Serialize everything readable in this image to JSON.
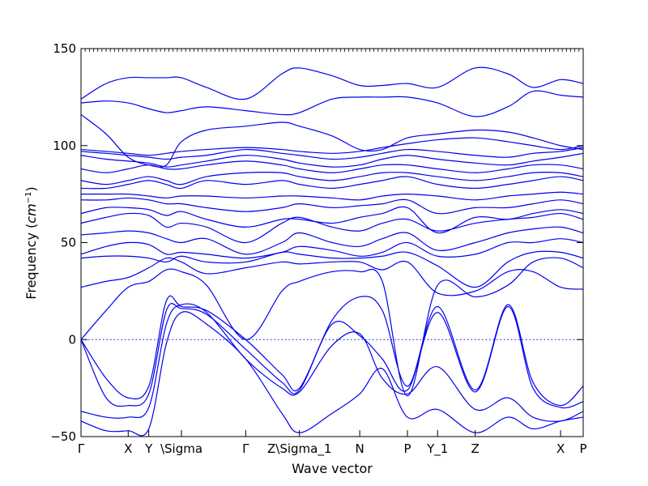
{
  "chart_data": {
    "type": "line",
    "title": "",
    "xlabel": "Wave vector",
    "ylabel": "Frequency",
    "ylabel_unit_base": "cm",
    "ylabel_unit_exp": "−1",
    "ylim": [
      -50,
      150
    ],
    "yticks": [
      -50,
      0,
      50,
      100,
      150
    ],
    "xlim": [
      0,
      1
    ],
    "grid": false,
    "zero_line": true,
    "line_color": "#0000ee",
    "xticks": [
      {
        "label": "Γ",
        "x": 0.0
      },
      {
        "label": "X",
        "x": 0.094
      },
      {
        "label": "Y",
        "x": 0.135
      },
      {
        "label": "\\Sigma",
        "x": 0.2
      },
      {
        "label": "Γ",
        "x": 0.328
      },
      {
        "label": "Z\\Sigma_1",
        "x": 0.435
      },
      {
        "label": "N",
        "x": 0.555
      },
      {
        "label": "P",
        "x": 0.65
      },
      {
        "label": "Y_1",
        "x": 0.71
      },
      {
        "label": "Z",
        "x": 0.785
      },
      {
        "label": "X",
        "x": 0.955
      },
      {
        "label": "P",
        "x": 1.0
      }
    ],
    "series": [
      {
        "x": [
          0,
          0.05,
          0.094,
          0.135,
          0.17,
          0.2,
          0.25,
          0.328,
          0.4,
          0.435,
          0.5,
          0.555,
          0.6,
          0.65,
          0.71,
          0.785,
          0.85,
          0.9,
          0.955,
          1.0
        ],
        "y": [
          -42,
          -47,
          -47,
          -46,
          -2,
          14,
          8,
          -10,
          -38,
          -48,
          -38,
          -28,
          -15,
          -40,
          -36,
          -48,
          -40,
          -46,
          -42,
          -40
        ]
      },
      {
        "x": [
          0,
          0.05,
          0.094,
          0.135,
          0.17,
          0.2,
          0.25,
          0.328,
          0.4,
          0.435,
          0.5,
          0.555,
          0.6,
          0.65,
          0.71,
          0.785,
          0.85,
          0.9,
          0.955,
          1.0
        ],
        "y": [
          -37,
          -40,
          -40,
          -35,
          8,
          18,
          14,
          -10,
          -25,
          -27,
          -3,
          3,
          -20,
          -28,
          -14,
          -36,
          -30,
          -40,
          -42,
          -37
        ]
      },
      {
        "x": [
          0,
          0.05,
          0.094,
          0.135,
          0.17,
          0.2,
          0.25,
          0.328,
          0.4,
          0.435,
          0.5,
          0.555,
          0.6,
          0.65,
          0.71,
          0.785,
          0.85,
          0.9,
          0.955,
          1.0
        ],
        "y": [
          0,
          -30,
          -34,
          -28,
          15,
          16,
          13,
          -5,
          -22,
          -26,
          8,
          2,
          -10,
          -26,
          14,
          -27,
          17,
          -25,
          -35,
          -32
        ]
      },
      {
        "x": [
          0,
          0.05,
          0.094,
          0.135,
          0.17,
          0.2,
          0.25,
          0.328,
          0.4,
          0.435,
          0.5,
          0.555,
          0.6,
          0.65,
          0.71,
          0.785,
          0.85,
          0.9,
          0.955,
          1.0
        ],
        "y": [
          0,
          -20,
          -30,
          -24,
          20,
          17,
          15,
          0,
          -18,
          -25,
          10,
          22,
          15,
          -24,
          17,
          -26,
          18,
          -22,
          -34,
          -24
        ]
      },
      {
        "x": [
          0,
          0.05,
          0.094,
          0.135,
          0.17,
          0.2,
          0.25,
          0.328,
          0.4,
          0.435,
          0.5,
          0.555,
          0.6,
          0.65,
          0.71,
          0.785,
          0.85,
          0.9,
          0.955,
          1.0
        ],
        "y": [
          0,
          15,
          27,
          30,
          36,
          35,
          28,
          0,
          25,
          30,
          35,
          35,
          30,
          -29,
          28,
          22,
          28,
          40,
          42,
          37
        ]
      },
      {
        "x": [
          0,
          0.05,
          0.094,
          0.135,
          0.17,
          0.2,
          0.25,
          0.328,
          0.4,
          0.435,
          0.5,
          0.555,
          0.6,
          0.65,
          0.71,
          0.785,
          0.85,
          0.9,
          0.955,
          1.0
        ],
        "y": [
          27,
          30,
          32,
          37,
          42,
          40,
          34,
          37,
          40,
          39,
          40,
          40,
          36,
          40,
          24,
          25,
          35,
          35,
          27,
          26
        ]
      },
      {
        "x": [
          0,
          0.05,
          0.094,
          0.135,
          0.17,
          0.2,
          0.25,
          0.328,
          0.4,
          0.435,
          0.5,
          0.555,
          0.6,
          0.65,
          0.71,
          0.785,
          0.85,
          0.9,
          0.955,
          1.0
        ],
        "y": [
          42,
          43,
          43,
          42,
          40,
          43,
          40,
          40,
          45,
          44,
          42,
          42,
          43,
          45,
          38,
          27,
          40,
          45,
          45,
          42
        ]
      },
      {
        "x": [
          0,
          0.05,
          0.094,
          0.135,
          0.17,
          0.2,
          0.25,
          0.328,
          0.4,
          0.435,
          0.5,
          0.555,
          0.6,
          0.65,
          0.71,
          0.785,
          0.85,
          0.9,
          0.955,
          1.0
        ],
        "y": [
          44,
          48,
          50,
          49,
          44,
          45,
          44,
          42,
          45,
          48,
          46,
          43,
          45,
          50,
          43,
          44,
          50,
          50,
          52,
          50
        ]
      },
      {
        "x": [
          0,
          0.05,
          0.094,
          0.135,
          0.17,
          0.2,
          0.25,
          0.328,
          0.4,
          0.435,
          0.5,
          0.555,
          0.6,
          0.65,
          0.71,
          0.785,
          0.85,
          0.9,
          0.955,
          1.0
        ],
        "y": [
          54,
          55,
          56,
          55,
          52,
          50,
          52,
          44,
          50,
          55,
          50,
          48,
          52,
          55,
          46,
          50,
          55,
          57,
          58,
          55
        ]
      },
      {
        "x": [
          0,
          0.05,
          0.094,
          0.135,
          0.17,
          0.2,
          0.25,
          0.328,
          0.4,
          0.435,
          0.5,
          0.555,
          0.6,
          0.65,
          0.71,
          0.785,
          0.85,
          0.9,
          0.955,
          1.0
        ],
        "y": [
          60,
          63,
          65,
          64,
          58,
          60,
          58,
          50,
          60,
          63,
          58,
          56,
          60,
          62,
          56,
          60,
          62,
          63,
          65,
          62
        ]
      },
      {
        "x": [
          0,
          0.05,
          0.094,
          0.135,
          0.17,
          0.2,
          0.25,
          0.328,
          0.4,
          0.435,
          0.5,
          0.555,
          0.6,
          0.65,
          0.71,
          0.785,
          0.85,
          0.9,
          0.955,
          1.0
        ],
        "y": [
          65,
          68,
          68,
          67,
          64,
          66,
          62,
          58,
          62,
          62,
          60,
          63,
          65,
          68,
          55,
          63,
          62,
          65,
          67,
          65
        ]
      },
      {
        "x": [
          0,
          0.05,
          0.094,
          0.135,
          0.17,
          0.2,
          0.25,
          0.328,
          0.4,
          0.435,
          0.5,
          0.555,
          0.6,
          0.65,
          0.71,
          0.785,
          0.85,
          0.9,
          0.955,
          1.0
        ],
        "y": [
          72,
          72,
          73,
          72,
          70,
          70,
          68,
          66,
          68,
          70,
          68,
          69,
          70,
          72,
          65,
          68,
          68,
          70,
          72,
          70
        ]
      },
      {
        "x": [
          0,
          0.05,
          0.094,
          0.135,
          0.17,
          0.2,
          0.25,
          0.328,
          0.4,
          0.435,
          0.5,
          0.555,
          0.6,
          0.65,
          0.71,
          0.785,
          0.85,
          0.9,
          0.955,
          1.0
        ],
        "y": [
          75,
          75,
          75,
          74,
          73,
          74,
          74,
          73,
          74,
          74,
          73,
          72,
          74,
          75,
          74,
          72,
          74,
          75,
          76,
          75
        ]
      },
      {
        "x": [
          0,
          0.05,
          0.094,
          0.135,
          0.17,
          0.2,
          0.25,
          0.328,
          0.4,
          0.435,
          0.5,
          0.555,
          0.6,
          0.65,
          0.71,
          0.785,
          0.85,
          0.9,
          0.955,
          1.0
        ],
        "y": [
          78,
          78,
          80,
          82,
          80,
          78,
          82,
          80,
          82,
          80,
          78,
          80,
          82,
          84,
          80,
          78,
          80,
          82,
          84,
          82
        ]
      },
      {
        "x": [
          0,
          0.05,
          0.094,
          0.135,
          0.17,
          0.2,
          0.25,
          0.328,
          0.4,
          0.435,
          0.5,
          0.555,
          0.6,
          0.65,
          0.71,
          0.785,
          0.85,
          0.9,
          0.955,
          1.0
        ],
        "y": [
          82,
          80,
          82,
          84,
          82,
          80,
          84,
          86,
          86,
          84,
          82,
          84,
          86,
          86,
          84,
          82,
          84,
          86,
          86,
          84
        ]
      },
      {
        "x": [
          0,
          0.05,
          0.094,
          0.135,
          0.17,
          0.2,
          0.25,
          0.328,
          0.4,
          0.435,
          0.5,
          0.555,
          0.6,
          0.65,
          0.71,
          0.785,
          0.85,
          0.9,
          0.955,
          1.0
        ],
        "y": [
          88,
          86,
          88,
          90,
          88,
          88,
          90,
          92,
          90,
          88,
          86,
          88,
          90,
          90,
          88,
          86,
          88,
          90,
          90,
          88
        ]
      },
      {
        "x": [
          0,
          0.05,
          0.094,
          0.135,
          0.17,
          0.2,
          0.25,
          0.328,
          0.4,
          0.435,
          0.5,
          0.555,
          0.6,
          0.65,
          0.71,
          0.785,
          0.85,
          0.9,
          0.955,
          1.0
        ],
        "y": [
          95,
          93,
          92,
          91,
          89,
          90,
          92,
          95,
          93,
          91,
          89,
          90,
          93,
          95,
          93,
          91,
          90,
          92,
          94,
          96
        ]
      },
      {
        "x": [
          0,
          0.05,
          0.094,
          0.135,
          0.17,
          0.2,
          0.25,
          0.328,
          0.4,
          0.435,
          0.5,
          0.555,
          0.6,
          0.65,
          0.71,
          0.785,
          0.85,
          0.9,
          0.955,
          1.0
        ],
        "y": [
          97,
          96,
          95,
          94,
          93,
          94,
          95,
          98,
          96,
          95,
          93,
          94,
          96,
          98,
          97,
          95,
          94,
          96,
          97,
          99
        ]
      },
      {
        "x": [
          0,
          0.05,
          0.094,
          0.135,
          0.17,
          0.2,
          0.25,
          0.328,
          0.4,
          0.435,
          0.5,
          0.555,
          0.6,
          0.65,
          0.71,
          0.785,
          0.85,
          0.9,
          0.955,
          1.0
        ],
        "y": [
          98,
          97,
          96,
          95,
          96,
          97,
          98,
          99,
          98,
          97,
          96,
          97,
          99,
          101,
          103,
          104,
          102,
          100,
          98,
          100
        ]
      },
      {
        "x": [
          0,
          0.05,
          0.094,
          0.135,
          0.17,
          0.2,
          0.25,
          0.328,
          0.4,
          0.435,
          0.5,
          0.555,
          0.6,
          0.65,
          0.71,
          0.785,
          0.85,
          0.9,
          0.955,
          1.0
        ],
        "y": [
          116,
          106,
          94,
          90,
          90,
          102,
          108,
          110,
          112,
          110,
          105,
          98,
          98,
          104,
          106,
          108,
          107,
          104,
          100,
          98
        ]
      },
      {
        "x": [
          0,
          0.05,
          0.094,
          0.135,
          0.17,
          0.2,
          0.25,
          0.328,
          0.4,
          0.435,
          0.5,
          0.555,
          0.6,
          0.65,
          0.71,
          0.785,
          0.85,
          0.9,
          0.955,
          1.0
        ],
        "y": [
          122,
          123,
          122,
          119,
          117,
          118,
          120,
          118,
          116,
          117,
          124,
          125,
          125,
          125,
          122,
          115,
          120,
          128,
          126,
          125
        ]
      },
      {
        "x": [
          0,
          0.05,
          0.094,
          0.135,
          0.17,
          0.2,
          0.25,
          0.328,
          0.4,
          0.435,
          0.5,
          0.555,
          0.6,
          0.65,
          0.71,
          0.785,
          0.85,
          0.9,
          0.955,
          1.0
        ],
        "y": [
          124,
          132,
          135,
          135,
          135,
          135,
          130,
          124,
          137,
          140,
          136,
          131,
          131,
          132,
          130,
          140,
          137,
          130,
          134,
          132
        ]
      }
    ]
  }
}
